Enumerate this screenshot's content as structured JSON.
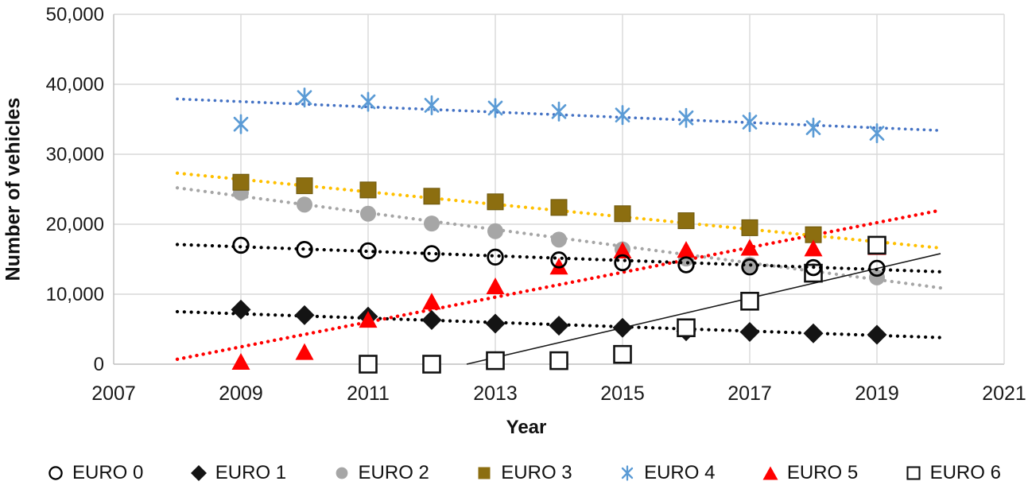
{
  "chart_data": {
    "type": "scatter",
    "title": "",
    "xlabel": "Year",
    "ylabel": "Number of vehicles",
    "xlim": [
      2007,
      2021
    ],
    "ylim": [
      0,
      50000
    ],
    "grid": true,
    "legend_position": "bottom",
    "x_axis": {
      "tick_labels": [
        "2007",
        "2009",
        "2011",
        "2013",
        "2015",
        "2017",
        "2019",
        "2021"
      ],
      "tick_values": [
        2007,
        2009,
        2011,
        2013,
        2015,
        2017,
        2019,
        2021
      ]
    },
    "y_axis": {
      "tick_labels": [
        "0",
        "10,000",
        "20,000",
        "30,000",
        "40,000",
        "50,000"
      ],
      "tick_values": [
        0,
        10000,
        20000,
        30000,
        40000,
        50000
      ]
    },
    "years": [
      2009,
      2010,
      2011,
      2012,
      2013,
      2014,
      2015,
      2016,
      2017,
      2018,
      2019
    ],
    "series": [
      {
        "name": "EURO 0",
        "marker": "open-circle",
        "color": "#000000",
        "values": [
          17000,
          16400,
          16200,
          15800,
          15300,
          14900,
          14500,
          14200,
          13900,
          13800,
          13700
        ],
        "trend": {
          "style": "dotted",
          "color": "#000000",
          "x1": 2008,
          "v1": 17100,
          "x2": 2020,
          "v2": 13200
        }
      },
      {
        "name": "EURO 1",
        "marker": "diamond",
        "color": "#141414",
        "values": [
          7800,
          7000,
          6800,
          6300,
          5800,
          5500,
          5200,
          4700,
          4600,
          4400,
          4200
        ],
        "trend": {
          "style": "dotted",
          "color": "#000000",
          "x1": 2008,
          "v1": 7500,
          "x2": 2020,
          "v2": 3800
        }
      },
      {
        "name": "EURO 2",
        "marker": "dot",
        "color": "#A6A6A6",
        "values": [
          24500,
          22800,
          21500,
          20100,
          19000,
          17800,
          16400,
          15100,
          14200,
          13300,
          12400
        ],
        "trend": {
          "style": "dotted",
          "color": "#A6A6A6",
          "x1": 2008,
          "v1": 25200,
          "x2": 2020,
          "v2": 10900
        }
      },
      {
        "name": "EURO 3",
        "marker": "square",
        "color": "#8C6E10",
        "values": [
          26000,
          25500,
          24900,
          24000,
          23200,
          22400,
          21500,
          20500,
          19500,
          18500,
          null
        ],
        "trend": {
          "style": "dotted",
          "color": "#FFC000",
          "x1": 2008,
          "v1": 27300,
          "x2": 2020,
          "v2": 16600
        }
      },
      {
        "name": "EURO 4",
        "marker": "asterisk",
        "color": "#5B9BD5",
        "values": [
          34300,
          38100,
          37500,
          37000,
          36600,
          36100,
          35600,
          35200,
          34600,
          33800,
          33000
        ],
        "trend": {
          "style": "dotted",
          "color": "#4472C4",
          "x1": 2008,
          "v1": 37900,
          "x2": 2020,
          "v2": 33400
        }
      },
      {
        "name": "EURO 5",
        "marker": "triangle",
        "color": "#FF0000",
        "values": [
          400,
          1800,
          6400,
          9000,
          11200,
          14000,
          16300,
          16400,
          16700,
          16600,
          16800
        ],
        "trend": {
          "style": "dotted",
          "color": "#FF0000",
          "x1": 2008,
          "v1": 700,
          "x2": 2020,
          "v2": 22000
        }
      },
      {
        "name": "EURO 6",
        "marker": "open-square",
        "color": "#111111",
        "values": [
          null,
          null,
          0,
          0,
          500,
          500,
          1400,
          5200,
          9000,
          13000,
          17000
        ],
        "trend": {
          "style": "solid",
          "color": "#1a1a1a",
          "x1": 2012.55,
          "v1": 0,
          "x2": 2020,
          "v2": 15800
        }
      }
    ],
    "colors": {
      "gridline": "#D9D9D9",
      "axis_line": "#BFBFBF",
      "tick_text": "#191919",
      "euro3_trend_gold": "#FFC000",
      "euro4_marker_blue": "#5B9BD5",
      "euro4_trend_blue": "#4472C4"
    }
  }
}
